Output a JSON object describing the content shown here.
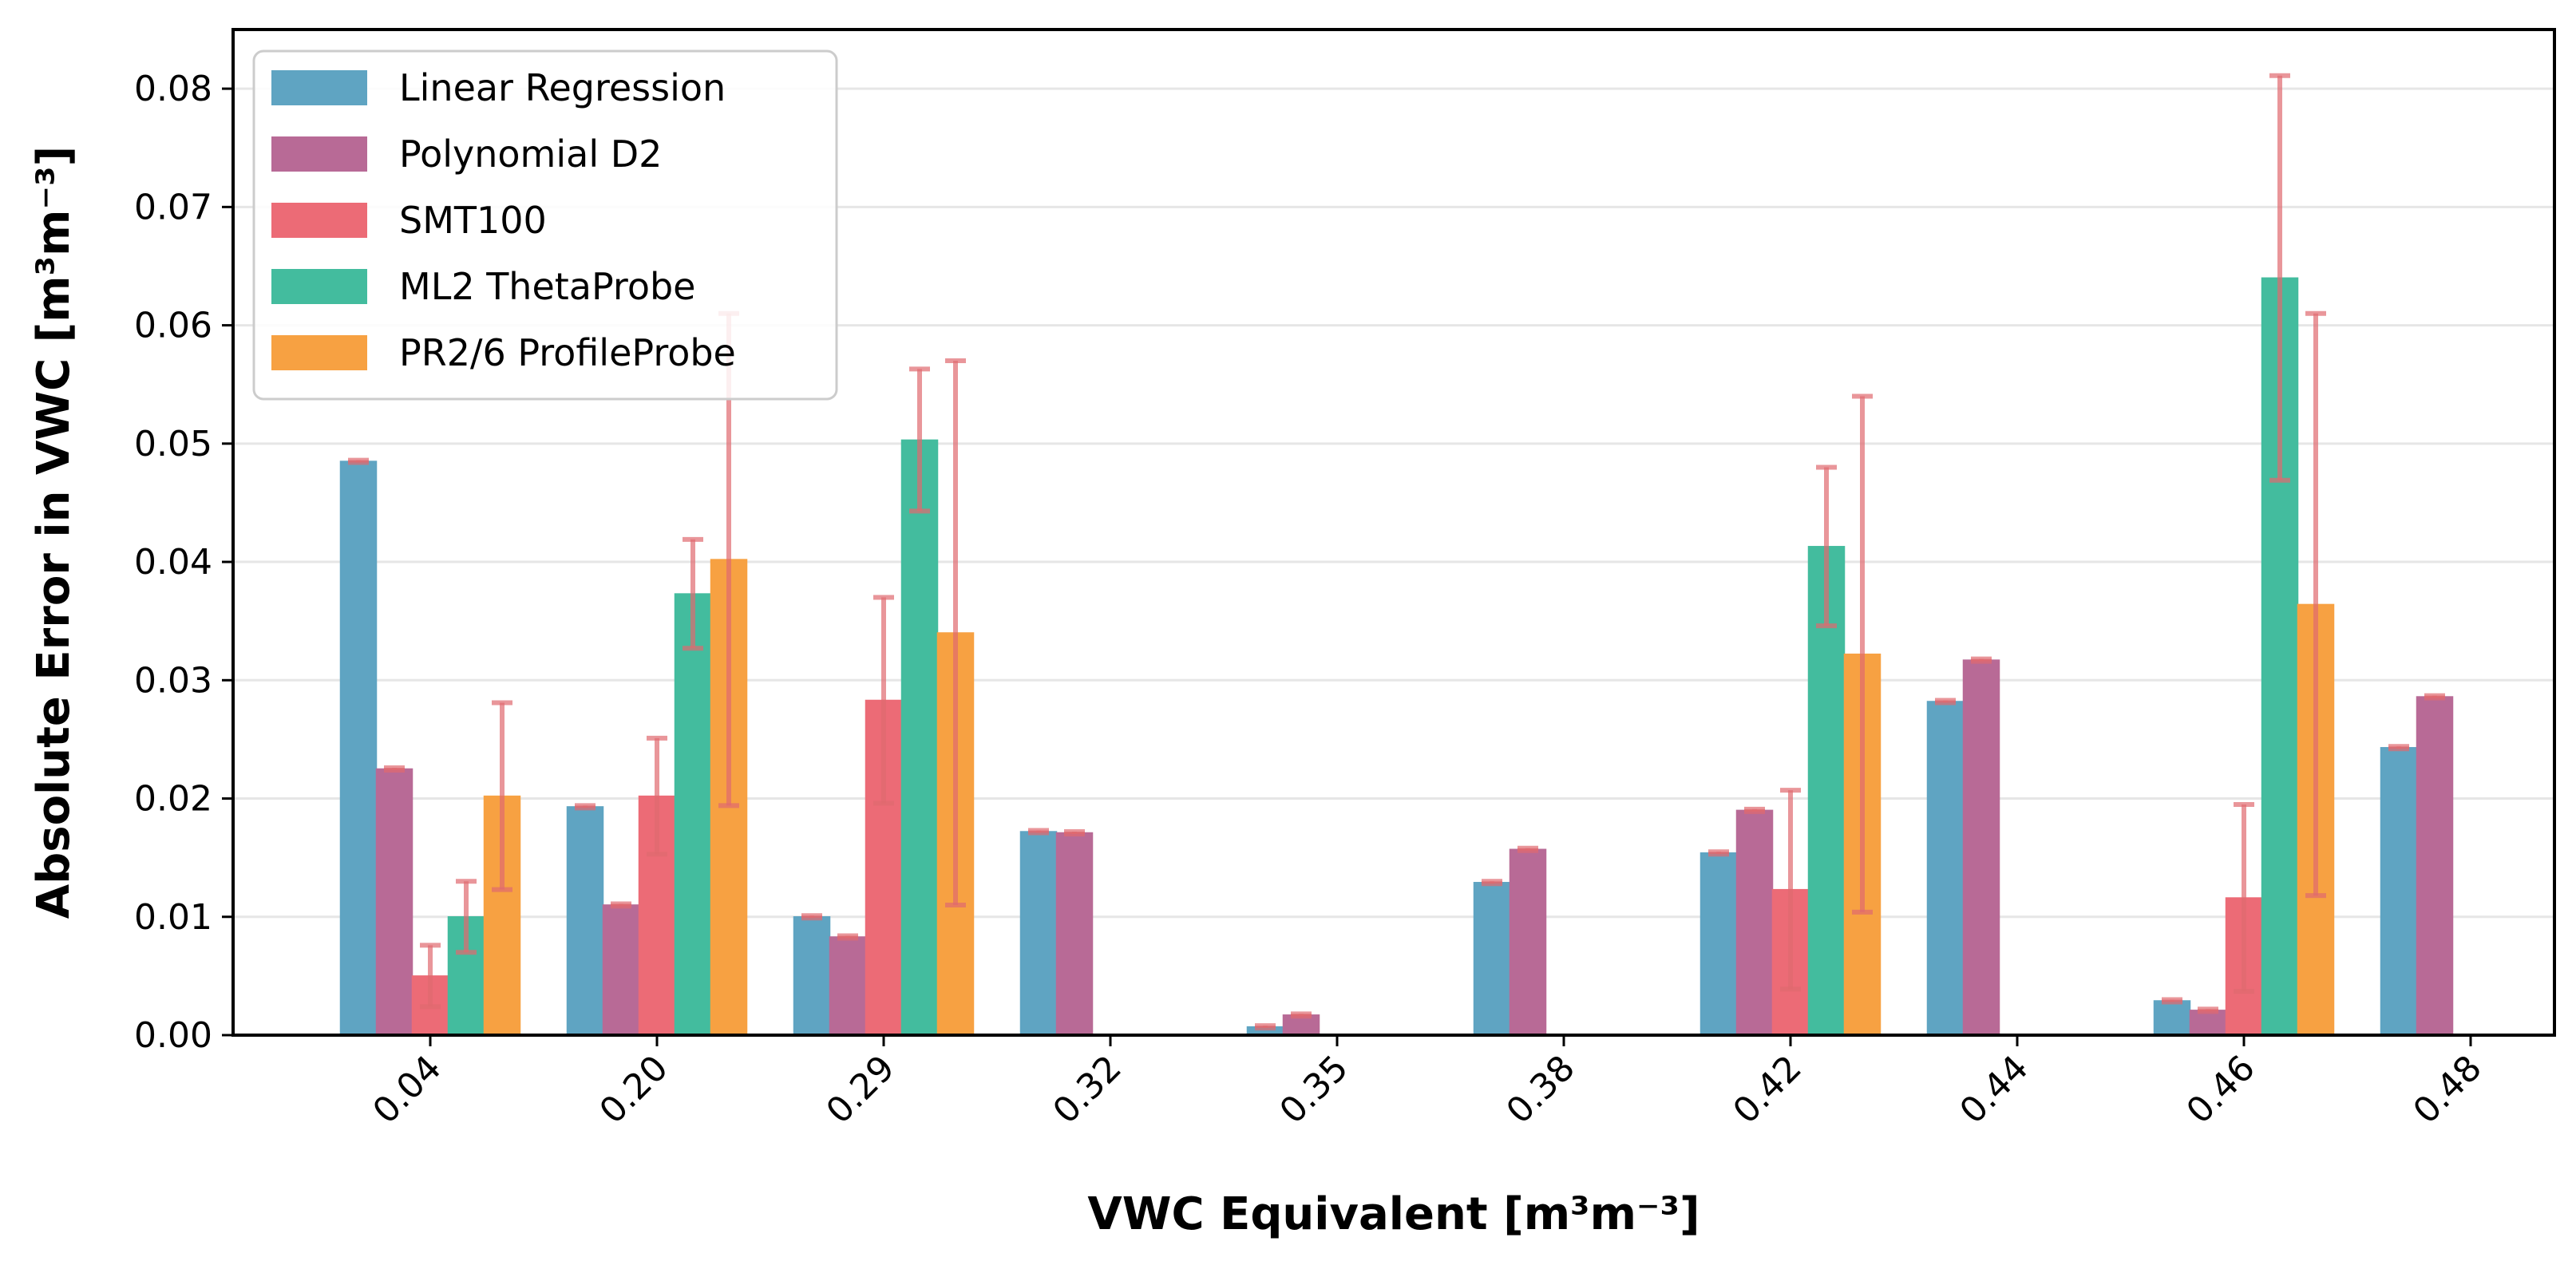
{
  "chart_data": {
    "type": "bar",
    "title": "",
    "xlabel": "VWC Equivalent [m³m⁻³]",
    "ylabel": "Absolute Error in VWC [m³m⁻³]",
    "ylim": [
      0,
      0.085
    ],
    "yticks": [
      0.0,
      0.01,
      0.02,
      0.03,
      0.04,
      0.05,
      0.06,
      0.07,
      0.08
    ],
    "ytick_labels": [
      "0.00",
      "0.01",
      "0.02",
      "0.03",
      "0.04",
      "0.05",
      "0.06",
      "0.07",
      "0.08"
    ],
    "categories": [
      "0.04",
      "0.20",
      "0.29",
      "0.32",
      "0.35",
      "0.38",
      "0.42",
      "0.44",
      "0.46",
      "0.48"
    ],
    "grid": "horizontal",
    "legend_position": "top-left",
    "errorbar_color": "#e06a6f",
    "series": [
      {
        "name": "Linear Regression",
        "color": "#5fa4c2",
        "values": [
          0.0485,
          0.0193,
          0.01,
          0.0172,
          0.0007,
          0.0129,
          0.0154,
          0.0282,
          0.0029,
          0.0243
        ],
        "errors": [
          0.0001,
          0.0001,
          0.0001,
          0.0001,
          0.0001,
          0.0001,
          0.0001,
          0.0001,
          0.0001,
          0.0001
        ]
      },
      {
        "name": "Polynomial D2",
        "color": "#b86a96",
        "values": [
          0.0225,
          0.011,
          0.0083,
          0.0171,
          0.0017,
          0.0157,
          0.019,
          0.0317,
          0.0021,
          0.0286
        ],
        "errors": [
          0.0001,
          0.0001,
          0.0001,
          0.0001,
          0.0001,
          0.0001,
          0.0001,
          0.0001,
          0.0001,
          0.0001
        ]
      },
      {
        "name": "SMT100",
        "color": "#ec6b76",
        "values": [
          0.005,
          0.0202,
          0.0283,
          null,
          null,
          null,
          0.0123,
          null,
          0.0116,
          null
        ],
        "errors": [
          0.0026,
          0.0049,
          0.0087,
          null,
          null,
          null,
          0.0084,
          null,
          0.0079,
          null
        ]
      },
      {
        "name": "ML2 ThetaProbe",
        "color": "#43bc9e",
        "values": [
          0.01,
          0.0373,
          0.0503,
          null,
          null,
          null,
          0.0413,
          null,
          0.064,
          null
        ],
        "errors": [
          0.003,
          0.0046,
          0.006,
          null,
          null,
          null,
          0.0067,
          null,
          0.0171,
          null
        ]
      },
      {
        "name": "PR2/6 ProfileProbe",
        "color": "#f7a142",
        "values": [
          0.0202,
          0.0402,
          0.034,
          null,
          null,
          null,
          0.0322,
          null,
          0.0364,
          null
        ],
        "errors": [
          0.0079,
          0.0208,
          0.023,
          null,
          null,
          null,
          0.0218,
          null,
          0.0246,
          null
        ]
      }
    ]
  }
}
